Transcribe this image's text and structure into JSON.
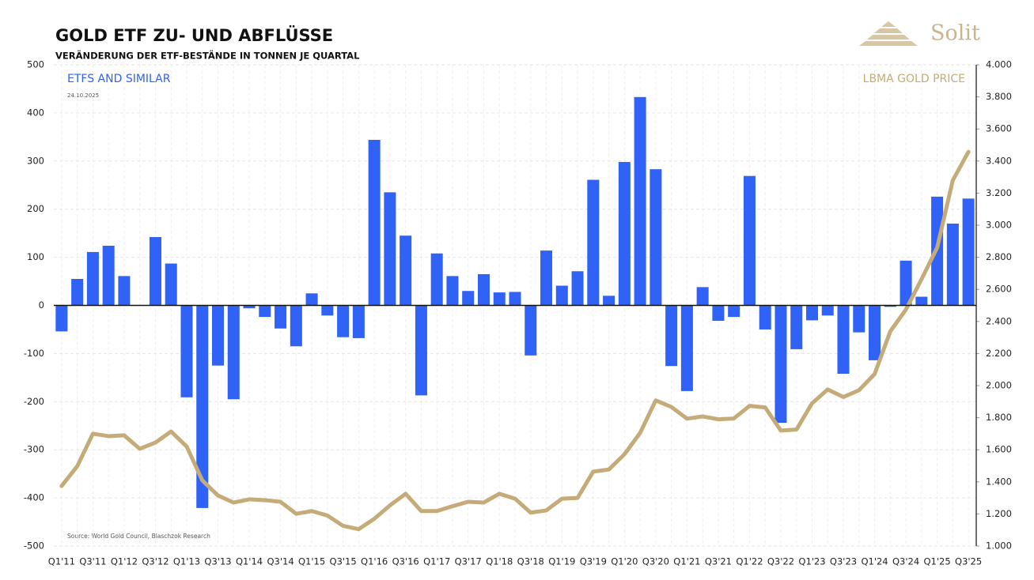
{
  "logo": "Solit",
  "chart_data": {
    "type": "bar",
    "title": "GOLD ETF ZU- UND ABFLÜSSE",
    "subtitle": "VERÄNDERUNG DER ETF-BESTÄNDE IN TONNEN JE QUARTAL",
    "date": "24.10.2025",
    "source": "Source: World Gold Council, Blaschzok Research",
    "categories": [
      "Q1'11",
      null,
      "Q3'11",
      null,
      "Q1'12",
      null,
      "Q3'12",
      null,
      "Q1'13",
      null,
      "Q3'13",
      null,
      "Q1'14",
      null,
      "Q3'14",
      null,
      "Q1'15",
      null,
      "Q3'15",
      null,
      "Q1'16",
      null,
      "Q3'16",
      null,
      "Q1'17",
      null,
      "Q3'17",
      null,
      "Q1'18",
      null,
      "Q3'18",
      null,
      "Q1'19",
      null,
      "Q3'19",
      null,
      "Q1'20",
      null,
      "Q3'20",
      null,
      "Q1'21",
      null,
      "Q3'21",
      null,
      "Q1'22",
      null,
      "Q3'22",
      null,
      "Q1'23",
      null,
      "Q3'23",
      null,
      "Q1'24",
      null,
      "Q3'24",
      null,
      "Q1'25",
      null,
      "Q3'25"
    ],
    "series": [
      {
        "name": "ETFS AND SIMILAR",
        "type": "bar",
        "color": "#2f62f5",
        "values": [
          -54,
          55,
          111,
          124,
          61,
          0,
          142,
          87,
          -191,
          -421,
          -125,
          -195,
          -6,
          -24,
          -48,
          -85,
          25,
          -21,
          -66,
          -68,
          344,
          235,
          145,
          -187,
          108,
          61,
          30,
          65,
          27,
          28,
          -104,
          114,
          41,
          71,
          261,
          20,
          298,
          433,
          283,
          -126,
          -178,
          38,
          -32,
          -24,
          269,
          -50,
          -244,
          -91,
          -31,
          -21,
          -142,
          -56,
          -114,
          -3,
          93,
          18,
          226,
          170,
          222
        ]
      },
      {
        "name": "LBMA GOLD PRICE",
        "type": "line",
        "axis": "y2",
        "color": "#c4ab78",
        "values": [
          1374,
          1498,
          1700,
          1685,
          1690,
          1606,
          1645,
          1714,
          1620,
          1409,
          1315,
          1271,
          1291,
          1286,
          1276,
          1201,
          1218,
          1190,
          1126,
          1105,
          1170,
          1253,
          1326,
          1218,
          1218,
          1248,
          1276,
          1271,
          1326,
          1295,
          1208,
          1222,
          1295,
          1300,
          1464,
          1477,
          1572,
          1705,
          1908,
          1867,
          1794,
          1808,
          1790,
          1795,
          1874,
          1864,
          1720,
          1726,
          1890,
          1976,
          1929,
          1971,
          2072,
          2338,
          2474,
          2663,
          2860,
          3280,
          3457
        ]
      }
    ],
    "ylim": [
      -500,
      500
    ],
    "yticks": [
      -500,
      -400,
      -300,
      -200,
      -100,
      0,
      100,
      200,
      300,
      400,
      500
    ],
    "y2lim": [
      1000,
      4000
    ],
    "y2ticks": [
      {
        "value": 1000,
        "label": "1.000"
      },
      {
        "value": 1200,
        "label": "1.200"
      },
      {
        "value": 1400,
        "label": "1.400"
      },
      {
        "value": 1600,
        "label": "1.600"
      },
      {
        "value": 1800,
        "label": "1.800"
      },
      {
        "value": 2000,
        "label": "2.000"
      },
      {
        "value": 2200,
        "label": "2.200"
      },
      {
        "value": 2400,
        "label": "2.400"
      },
      {
        "value": 2600,
        "label": "2.600"
      },
      {
        "value": 2800,
        "label": "2.800"
      },
      {
        "value": 3000,
        "label": "3.000"
      },
      {
        "value": 3200,
        "label": "3.200"
      },
      {
        "value": 3400,
        "label": "3.400"
      },
      {
        "value": 3600,
        "label": "3.600"
      },
      {
        "value": 3800,
        "label": "3.800"
      },
      {
        "value": 4000,
        "label": "4.000"
      }
    ],
    "grid": true
  }
}
